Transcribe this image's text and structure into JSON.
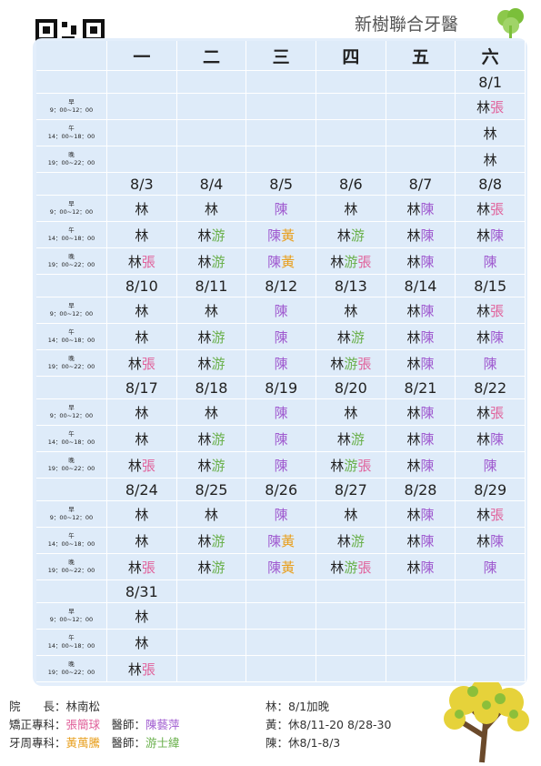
{
  "header": {
    "title": "新樹聯合牙醫"
  },
  "weekdays": [
    "一",
    "二",
    "三",
    "四",
    "五",
    "六"
  ],
  "slots": [
    {
      "label": "早",
      "time": "9：00~12：00"
    },
    {
      "label": "午",
      "time": "14：00~18：00"
    },
    {
      "label": "晚",
      "time": "19：00~22：00"
    }
  ],
  "colors": {
    "林": "#222222",
    "張": "#e0609a",
    "游": "#6ab04c",
    "陳": "#a05cd0",
    "黃": "#e8a020"
  },
  "weeks": [
    {
      "dates": [
        null,
        null,
        null,
        null,
        null,
        "8/1"
      ],
      "rows": [
        [
          [],
          [],
          [],
          [],
          [],
          [
            "林",
            "張"
          ]
        ],
        [
          [],
          [],
          [],
          [],
          [],
          [
            "林"
          ]
        ],
        [
          [],
          [],
          [],
          [],
          [],
          [
            "林"
          ]
        ]
      ]
    },
    {
      "dates": [
        "8/3",
        "8/4",
        "8/5",
        "8/6",
        "8/7",
        "8/8"
      ],
      "rows": [
        [
          [
            "林"
          ],
          [
            "林"
          ],
          [
            "陳"
          ],
          [
            "林"
          ],
          [
            "林",
            "陳"
          ],
          [
            "林",
            "張"
          ]
        ],
        [
          [
            "林"
          ],
          [
            "林",
            "游"
          ],
          [
            "陳",
            "黃"
          ],
          [
            "林",
            "游"
          ],
          [
            "林",
            "陳"
          ],
          [
            "林",
            "陳"
          ]
        ],
        [
          [
            "林",
            "張"
          ],
          [
            "林",
            "游"
          ],
          [
            "陳",
            "黃"
          ],
          [
            "林",
            "游",
            "張"
          ],
          [
            "林",
            "陳"
          ],
          [
            "陳"
          ]
        ]
      ]
    },
    {
      "dates": [
        "8/10",
        "8/11",
        "8/12",
        "8/13",
        "8/14",
        "8/15"
      ],
      "rows": [
        [
          [
            "林"
          ],
          [
            "林"
          ],
          [
            "陳"
          ],
          [
            "林"
          ],
          [
            "林",
            "陳"
          ],
          [
            "林",
            "張"
          ]
        ],
        [
          [
            "林"
          ],
          [
            "林",
            "游"
          ],
          [
            "陳"
          ],
          [
            "林",
            "游"
          ],
          [
            "林",
            "陳"
          ],
          [
            "林",
            "陳"
          ]
        ],
        [
          [
            "林",
            "張"
          ],
          [
            "林",
            "游"
          ],
          [
            "陳"
          ],
          [
            "林",
            "游",
            "張"
          ],
          [
            "林",
            "陳"
          ],
          [
            "陳"
          ]
        ]
      ]
    },
    {
      "dates": [
        "8/17",
        "8/18",
        "8/19",
        "8/20",
        "8/21",
        "8/22"
      ],
      "rows": [
        [
          [
            "林"
          ],
          [
            "林"
          ],
          [
            "陳"
          ],
          [
            "林"
          ],
          [
            "林",
            "陳"
          ],
          [
            "林",
            "張"
          ]
        ],
        [
          [
            "林"
          ],
          [
            "林",
            "游"
          ],
          [
            "陳"
          ],
          [
            "林",
            "游"
          ],
          [
            "林",
            "陳"
          ],
          [
            "林",
            "陳"
          ]
        ],
        [
          [
            "林",
            "張"
          ],
          [
            "林",
            "游"
          ],
          [
            "陳"
          ],
          [
            "林",
            "游",
            "張"
          ],
          [
            "林",
            "陳"
          ],
          [
            "陳"
          ]
        ]
      ]
    },
    {
      "dates": [
        "8/24",
        "8/25",
        "8/26",
        "8/27",
        "8/28",
        "8/29"
      ],
      "rows": [
        [
          [
            "林"
          ],
          [
            "林"
          ],
          [
            "陳"
          ],
          [
            "林"
          ],
          [
            "林",
            "陳"
          ],
          [
            "林",
            "張"
          ]
        ],
        [
          [
            "林"
          ],
          [
            "林",
            "游"
          ],
          [
            "陳",
            "黃"
          ],
          [
            "林",
            "游"
          ],
          [
            "林",
            "陳"
          ],
          [
            "林",
            "陳"
          ]
        ],
        [
          [
            "林",
            "張"
          ],
          [
            "林",
            "游"
          ],
          [
            "陳",
            "黃"
          ],
          [
            "林",
            "游",
            "張"
          ],
          [
            "林",
            "陳"
          ],
          [
            "陳"
          ]
        ]
      ]
    },
    {
      "dates": [
        "8/31",
        null,
        null,
        null,
        null,
        null
      ],
      "rows": [
        [
          [
            "林"
          ],
          [],
          [],
          [],
          [],
          []
        ],
        [
          [
            "林"
          ],
          [],
          [],
          [],
          [],
          []
        ],
        [
          [
            "林",
            "張"
          ],
          [],
          [],
          [],
          [],
          []
        ]
      ]
    }
  ],
  "footer": {
    "staff": [
      [
        {
          "text": "院　　長：",
          "color": "#333333"
        },
        {
          "text": "林南松",
          "color": "#333333"
        }
      ],
      [
        {
          "text": "矯正專科：",
          "color": "#333333"
        },
        {
          "text": "張簡球",
          "color": "#e0609a"
        },
        {
          "text": "　醫師：",
          "color": "#333333"
        },
        {
          "text": "陳藝萍",
          "color": "#a05cd0"
        }
      ],
      [
        {
          "text": "牙周專科：",
          "color": "#333333"
        },
        {
          "text": "黃萬騰",
          "color": "#e8a020"
        },
        {
          "text": "　醫師：",
          "color": "#333333"
        },
        {
          "text": "游士緯",
          "color": "#6ab04c"
        }
      ]
    ],
    "notes": [
      "林：8/1加晚",
      "黃：休8/11-20 8/28-30",
      "陳：休8/1-8/3"
    ]
  }
}
